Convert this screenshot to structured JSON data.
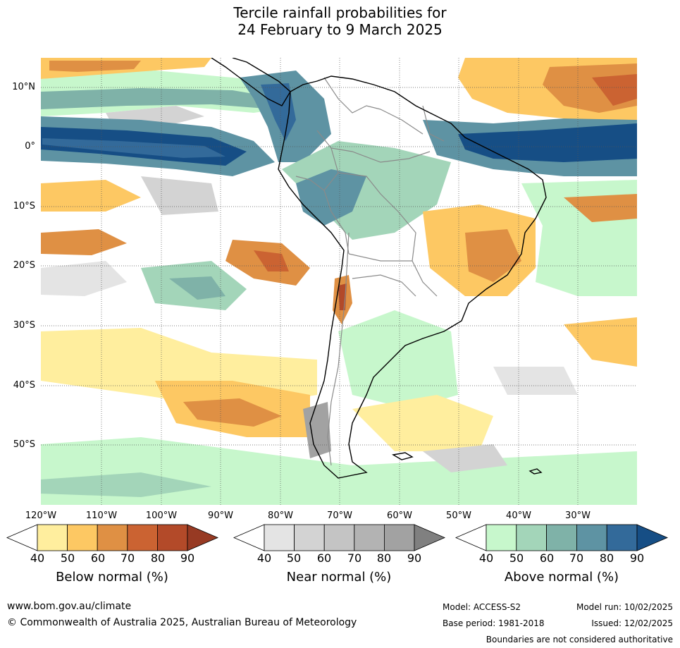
{
  "title": {
    "line1": "Tercile rainfall probabilities for",
    "line2": "24 February to 9 March 2025"
  },
  "map": {
    "lat_labels": [
      "10°N",
      "0°",
      "10°S",
      "20°S",
      "30°S",
      "40°S",
      "50°S"
    ],
    "lon_labels": [
      "120°W",
      "110°W",
      "100°W",
      "90°W",
      "80°W",
      "70°W",
      "60°W",
      "50°W",
      "40°W",
      "30°W"
    ],
    "colors": {
      "land_outline": "#000000",
      "border": "#8a8a8a",
      "grid": "#555555"
    }
  },
  "colorbars": [
    {
      "name": "below-normal",
      "title": "Below normal (%)",
      "ticks": [
        "40",
        "50",
        "60",
        "70",
        "80",
        "90"
      ],
      "colors": [
        "#ffee9e",
        "#fdc863",
        "#df9044",
        "#cb6332",
        "#b34a29",
        "#973a23"
      ]
    },
    {
      "name": "near-normal",
      "title": "Near normal (%)",
      "ticks": [
        "40",
        "50",
        "60",
        "70",
        "80",
        "90"
      ],
      "colors": [
        "#e4e4e4",
        "#d3d3d3",
        "#c4c4c4",
        "#b3b3b3",
        "#a2a2a2",
        "#808080"
      ]
    },
    {
      "name": "above-normal",
      "title": "Above normal (%)",
      "ticks": [
        "40",
        "50",
        "60",
        "70",
        "80",
        "90"
      ],
      "colors": [
        "#c7f7cc",
        "#a3d5b9",
        "#7fb2a8",
        "#5e93a3",
        "#336a9a",
        "#164e85"
      ]
    }
  ],
  "footer": {
    "website": "www.bom.gov.au/climate",
    "copyright": "© Commonwealth of Australia 2025, Australian Bureau of Meteorology",
    "model": "Model: ACCESS-S2",
    "model_run": "Model run: 10/02/2025",
    "base_period": "Base period: 1981-2018",
    "issued": "Issued: 12/02/2025",
    "disclaimer": "Boundaries are not considered authoritative"
  }
}
